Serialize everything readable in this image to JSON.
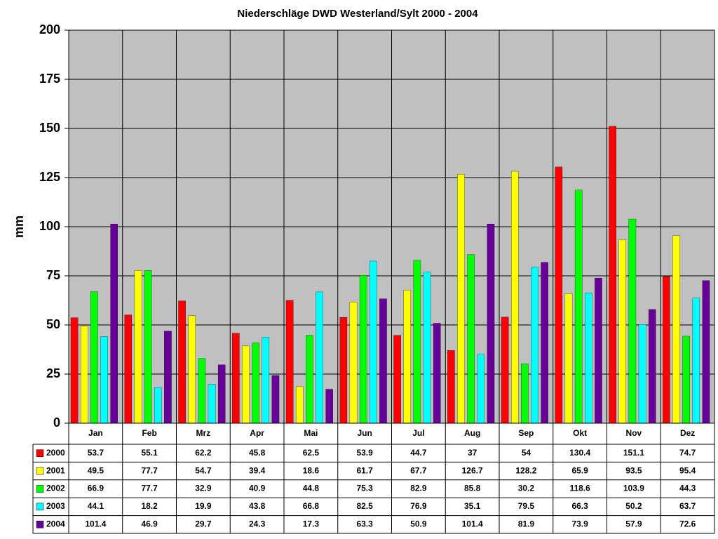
{
  "chart_data": {
    "type": "bar",
    "title": "Niederschläge DWD Westerland/Sylt 2000 - 2004",
    "y_label": "mm",
    "categories": [
      "Jan",
      "Feb",
      "Mrz",
      "Apr",
      "Mai",
      "Jun",
      "Jul",
      "Aug",
      "Sep",
      "Okt",
      "Nov",
      "Dez"
    ],
    "series": [
      {
        "name": "2000",
        "color": "#ff0000",
        "values": [
          53.7,
          55.1,
          62.2,
          45.8,
          62.5,
          53.9,
          44.7,
          37,
          54,
          130.4,
          151.1,
          74.7
        ]
      },
      {
        "name": "2001",
        "color": "#ffff00",
        "values": [
          49.5,
          77.7,
          54.7,
          39.4,
          18.6,
          61.7,
          67.7,
          126.7,
          128.2,
          65.9,
          93.5,
          95.4
        ]
      },
      {
        "name": "2002",
        "color": "#00ff00",
        "values": [
          66.9,
          77.7,
          32.9,
          40.9,
          44.8,
          75.3,
          82.9,
          85.8,
          30.2,
          118.6,
          103.9,
          44.3
        ]
      },
      {
        "name": "2003",
        "color": "#00ffff",
        "values": [
          44.1,
          18.2,
          19.9,
          43.8,
          66.8,
          82.5,
          76.9,
          35.1,
          79.5,
          66.3,
          50.2,
          63.7
        ]
      },
      {
        "name": "2004",
        "color": "#660099",
        "values": [
          101.4,
          46.9,
          29.7,
          24.3,
          17.3,
          63.3,
          50.9,
          101.4,
          81.9,
          73.9,
          57.9,
          72.6
        ]
      }
    ],
    "ylim": [
      0,
      200
    ],
    "yticks": [
      0,
      25,
      50,
      75,
      100,
      125,
      150,
      175,
      200
    ],
    "grid": true
  }
}
